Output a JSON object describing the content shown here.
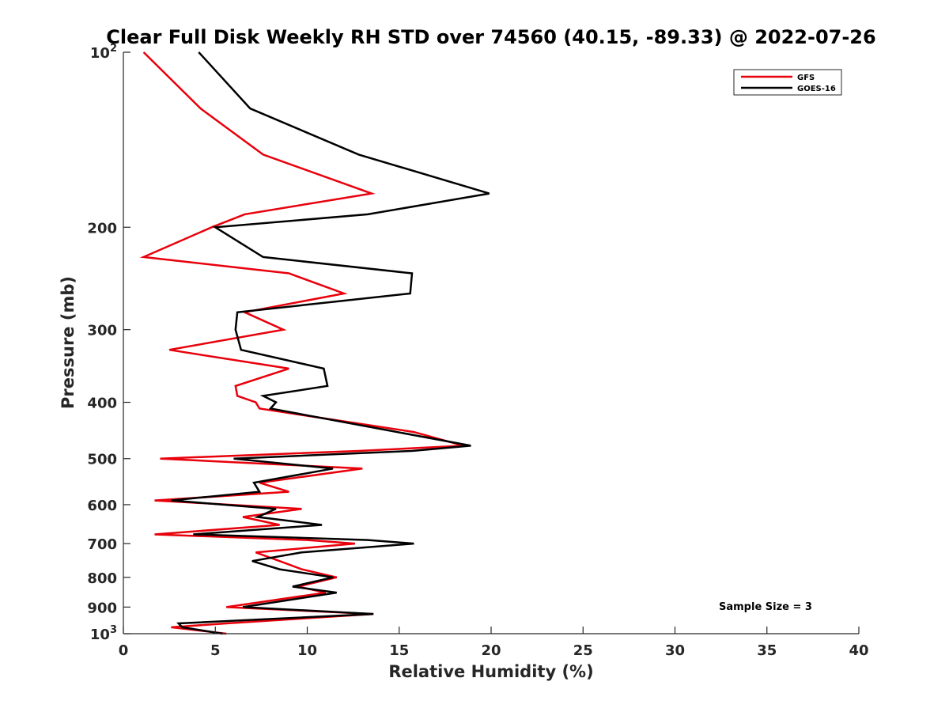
{
  "chart_data": {
    "type": "line",
    "title": "Clear Full Disk Weekly RH STD over 74560 (40.15, -89.33) @ 2022-07-26",
    "xlabel": "Relative Humidity (%)",
    "ylabel": "Pressure (mb)",
    "xlim": [
      0,
      40
    ],
    "ylim": [
      100,
      1000
    ],
    "yscale": "log",
    "y_reversed": true,
    "xticks": [
      0,
      5,
      10,
      15,
      20,
      25,
      30,
      35,
      40
    ],
    "yticks": [
      {
        "value": 100,
        "base": "10",
        "exp": "2"
      },
      {
        "value": 200,
        "label": "200"
      },
      {
        "value": 300,
        "label": "300"
      },
      {
        "value": 400,
        "label": "400"
      },
      {
        "value": 500,
        "label": "500"
      },
      {
        "value": 600,
        "label": "600"
      },
      {
        "value": 700,
        "label": "700"
      },
      {
        "value": 800,
        "label": "800"
      },
      {
        "value": 900,
        "label": "900"
      },
      {
        "value": 1000,
        "base": "10",
        "exp": "3"
      }
    ],
    "grid": false,
    "legend_position": "top-right",
    "annotation": "Sample Size = 3",
    "series": [
      {
        "name": "GFS",
        "color": "#e8000b",
        "points": [
          [
            1.1,
            100
          ],
          [
            4.2,
            125
          ],
          [
            7.6,
            150
          ],
          [
            13.5,
            175
          ],
          [
            6.6,
            190
          ],
          [
            4.8,
            200
          ],
          [
            1.1,
            225
          ],
          [
            9.0,
            240
          ],
          [
            12.0,
            260
          ],
          [
            6.6,
            280
          ],
          [
            8.7,
            300
          ],
          [
            2.5,
            325
          ],
          [
            9.0,
            350
          ],
          [
            6.1,
            375
          ],
          [
            6.2,
            390
          ],
          [
            7.2,
            400
          ],
          [
            7.4,
            410
          ],
          [
            15.8,
            450
          ],
          [
            18.5,
            475
          ],
          [
            12.8,
            485
          ],
          [
            2.0,
            500
          ],
          [
            13.0,
            520
          ],
          [
            7.4,
            550
          ],
          [
            9.0,
            570
          ],
          [
            1.7,
            590
          ],
          [
            9.7,
            610
          ],
          [
            6.5,
            630
          ],
          [
            8.5,
            650
          ],
          [
            1.7,
            675
          ],
          [
            10.0,
            690
          ],
          [
            12.6,
            700
          ],
          [
            7.2,
            725
          ],
          [
            8.5,
            750
          ],
          [
            9.7,
            775
          ],
          [
            11.6,
            800
          ],
          [
            9.5,
            830
          ],
          [
            11.0,
            850
          ],
          [
            5.6,
            900
          ],
          [
            13.6,
            925
          ],
          [
            5.6,
            960
          ],
          [
            2.6,
            975
          ],
          [
            5.6,
            1000
          ]
        ]
      },
      {
        "name": "GOES-16",
        "color": "#000000",
        "points": [
          [
            4.1,
            100
          ],
          [
            6.9,
            125
          ],
          [
            12.8,
            150
          ],
          [
            19.9,
            175
          ],
          [
            13.3,
            190
          ],
          [
            5.0,
            200
          ],
          [
            7.6,
            225
          ],
          [
            15.7,
            240
          ],
          [
            15.6,
            260
          ],
          [
            6.2,
            280
          ],
          [
            6.1,
            300
          ],
          [
            6.4,
            325
          ],
          [
            10.9,
            350
          ],
          [
            11.1,
            375
          ],
          [
            7.6,
            390
          ],
          [
            8.3,
            400
          ],
          [
            8.0,
            410
          ],
          [
            18.9,
            475
          ],
          [
            15.7,
            485
          ],
          [
            6.0,
            500
          ],
          [
            11.4,
            520
          ],
          [
            7.1,
            550
          ],
          [
            7.4,
            570
          ],
          [
            2.6,
            590
          ],
          [
            8.3,
            610
          ],
          [
            7.3,
            630
          ],
          [
            10.8,
            650
          ],
          [
            3.8,
            675
          ],
          [
            13.3,
            690
          ],
          [
            15.8,
            700
          ],
          [
            9.7,
            725
          ],
          [
            7.0,
            750
          ],
          [
            8.5,
            775
          ],
          [
            11.4,
            800
          ],
          [
            9.2,
            830
          ],
          [
            11.6,
            850
          ],
          [
            6.5,
            900
          ],
          [
            13.6,
            925
          ],
          [
            3.0,
            960
          ],
          [
            3.2,
            975
          ],
          [
            5.4,
            1000
          ]
        ]
      }
    ]
  }
}
